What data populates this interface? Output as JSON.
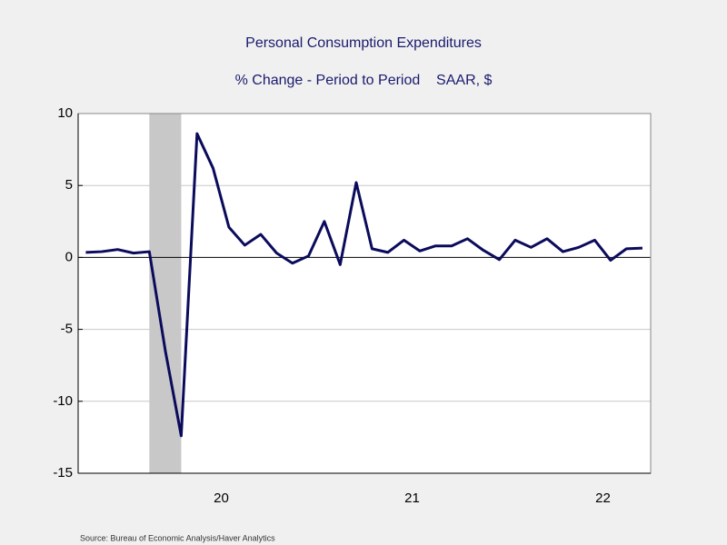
{
  "chart_data": {
    "type": "line",
    "title": "Personal Consumption Expenditures",
    "subtitle": "% Change - Period to Period    SAAR, $",
    "source": "Source:  Bureau of Economic Analysis/Haver Analytics",
    "x": [
      2019.75,
      2019.833,
      2019.917,
      2020,
      2020.083,
      2020.167,
      2020.25,
      2020.333,
      2020.417,
      2020.5,
      2020.583,
      2020.667,
      2020.75,
      2020.833,
      2020.917,
      2021,
      2021.083,
      2021.167,
      2021.25,
      2021.333,
      2021.417,
      2021.5,
      2021.583,
      2021.667,
      2021.75,
      2021.833,
      2021.917,
      2022,
      2022.083,
      2022.167,
      2022.25,
      2022.333,
      2022.417,
      2022.5,
      2022.583,
      2022.667
    ],
    "series": [
      {
        "name": "Personal Consumption Expenditures",
        "color": "#0b0b5c",
        "values": [
          0.35,
          0.4,
          0.55,
          0.3,
          0.4,
          -6.5,
          -12.4,
          8.6,
          6.2,
          2.1,
          0.85,
          1.6,
          0.3,
          -0.4,
          0.1,
          2.5,
          -0.5,
          5.2,
          0.6,
          0.35,
          1.2,
          0.45,
          0.8,
          0.8,
          1.3,
          0.5,
          -0.15,
          1.2,
          0.7,
          1.3,
          0.4,
          0.7,
          1.2,
          -0.2,
          0.6,
          0.65
        ]
      }
    ],
    "recession": [
      2020.083,
      2020.25
    ],
    "xlim": [
      2019.71,
      2022.71
    ],
    "xticks": [
      {
        "value": 2020.46,
        "label": "20"
      },
      {
        "value": 2021.46,
        "label": "21"
      },
      {
        "value": 2022.46,
        "label": "22"
      }
    ],
    "ylim": [
      -15,
      10
    ],
    "yticks": [
      -15,
      -10,
      -5,
      0,
      5,
      10
    ],
    "grid": true
  }
}
